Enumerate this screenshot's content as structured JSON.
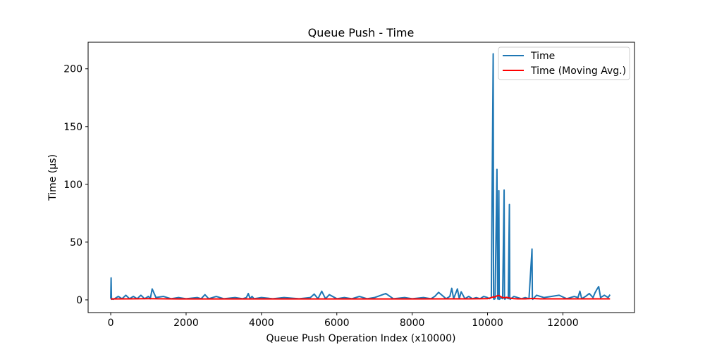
{
  "chart_data": {
    "type": "line",
    "title": "Queue Push - Time",
    "xlabel": "Queue Push Operation Index (x10000)",
    "ylabel": "Time (µs)",
    "xlim": [
      -600,
      13900
    ],
    "ylim": [
      -11,
      223
    ],
    "xticks": [
      0,
      2000,
      4000,
      6000,
      8000,
      10000,
      12000
    ],
    "yticks": [
      0,
      50,
      100,
      150,
      200
    ],
    "grid": false,
    "legend_position": "top-right",
    "series": [
      {
        "name": "Time",
        "color": "#1f77b4",
        "x": [
          0,
          10,
          20,
          30,
          60,
          100,
          200,
          300,
          400,
          500,
          600,
          700,
          800,
          900,
          1000,
          1050,
          1100,
          1200,
          1400,
          1600,
          1800,
          2000,
          2300,
          2400,
          2500,
          2600,
          2800,
          3000,
          3300,
          3500,
          3600,
          3650,
          3700,
          3750,
          3800,
          4000,
          4300,
          4600,
          5000,
          5300,
          5400,
          5500,
          5600,
          5700,
          5800,
          6000,
          6200,
          6400,
          6600,
          6800,
          7000,
          7300,
          7500,
          7800,
          8000,
          8300,
          8500,
          8600,
          8700,
          8900,
          9000,
          9050,
          9100,
          9200,
          9250,
          9300,
          9400,
          9500,
          9600,
          9700,
          9800,
          9900,
          10000,
          10050,
          10100,
          10150,
          10160,
          10170,
          10200,
          10250,
          10270,
          10280,
          10300,
          10310,
          10320,
          10350,
          10400,
          10440,
          10450,
          10460,
          10500,
          10550,
          10580,
          10590,
          10600,
          10700,
          10800,
          10900,
          11000,
          11100,
          11180,
          11190,
          11200,
          11300,
          11500,
          11700,
          11900,
          12100,
          12300,
          12400,
          12450,
          12500,
          12600,
          12700,
          12800,
          12850,
          12900,
          12950,
          13000,
          13100,
          13200,
          13250
        ],
        "values": [
          1,
          19,
          0.5,
          1,
          0.5,
          1,
          3,
          1,
          4,
          1,
          3,
          1,
          4,
          1,
          3,
          1,
          9.5,
          2,
          3,
          1,
          2,
          1,
          2,
          1,
          4.5,
          1,
          3,
          1,
          2,
          1,
          2,
          5.5,
          1,
          3,
          1,
          2,
          1,
          2,
          1,
          2,
          5,
          1,
          7.5,
          1,
          4.5,
          1,
          2,
          1,
          3,
          1,
          2,
          5.5,
          1,
          2,
          1,
          2,
          1,
          3,
          6.5,
          1,
          3,
          10,
          1,
          9.5,
          1,
          7,
          1,
          3,
          1,
          2,
          1,
          3,
          2,
          1,
          2,
          213,
          1,
          0.5,
          1,
          113,
          1,
          0.5,
          94.5,
          1,
          0.5,
          2,
          1,
          95,
          1,
          0.5,
          2,
          1,
          82.5,
          1,
          0.5,
          3,
          2,
          1,
          2,
          1,
          44,
          1,
          0.5,
          4,
          2,
          3,
          4,
          1,
          3,
          2,
          7.5,
          1,
          3,
          5.5,
          2,
          6,
          9,
          11.5,
          2,
          4,
          2,
          4.5
        ]
      },
      {
        "name": "Time (Moving Avg.)",
        "color": "#ff0000",
        "x": [
          0,
          500,
          1000,
          1500,
          2000,
          3000,
          4000,
          5000,
          6000,
          7000,
          8000,
          9000,
          9500,
          10000,
          10100,
          10150,
          10200,
          10250,
          10300,
          10350,
          10400,
          10450,
          10500,
          10600,
          10700,
          10800,
          11000,
          11200,
          11400,
          11600,
          12000,
          12500,
          13000,
          13250
        ],
        "values": [
          0.8,
          0.9,
          1.0,
          0.9,
          0.8,
          0.8,
          0.8,
          0.8,
          0.8,
          0.8,
          0.8,
          0.9,
          0.9,
          1.0,
          2.0,
          2.5,
          2.5,
          3.5,
          3.8,
          2.8,
          2.0,
          1.8,
          2.2,
          1.5,
          1.0,
          0.9,
          0.9,
          1.2,
          0.9,
          0.9,
          0.9,
          0.9,
          0.9,
          0.9
        ]
      }
    ]
  }
}
